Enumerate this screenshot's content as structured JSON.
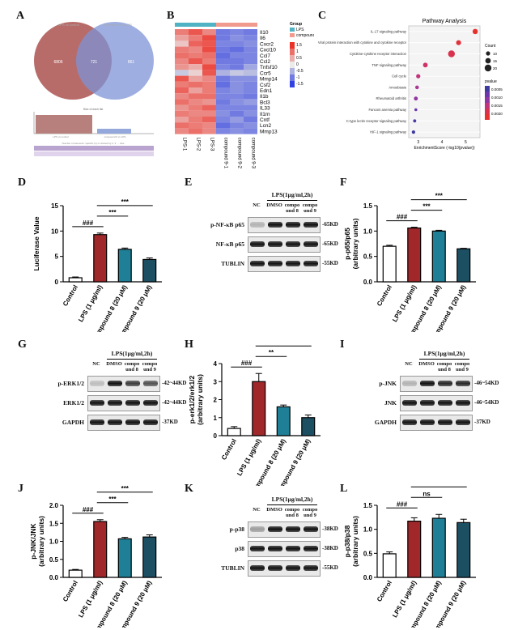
{
  "panels": {
    "A": "A",
    "B": "B",
    "C": "C",
    "D": "D",
    "E": "E",
    "F": "F",
    "G": "G",
    "H": "H",
    "I": "I",
    "J": "J",
    "K": "K",
    "L": "L"
  },
  "venn": {
    "left_title": "LPS vs control",
    "right_title": "compound 9 vs LPS",
    "left_only": "6806",
    "overlap": "721",
    "right_only": "861",
    "bar_title": "Size of each list",
    "bar_left": "LPS vs control",
    "bar_right": "compound 9 vs LPS",
    "bottom_note": "Number of elements: specific (1) or shared by 2, 3, ... lists"
  },
  "heatmap": {
    "genes": [
      "Il10",
      "Il6",
      "Cxcr2",
      "Cxcl10",
      "Ccl7",
      "Ccl2",
      "Tnfsf10",
      "Ccr5",
      "Mmp14",
      "Csf2",
      "Edn1",
      "Il1b",
      "Bcl3",
      "IL33",
      "Il1rn",
      "Cntf",
      "Lcn2",
      "Mmp13"
    ],
    "samples": [
      "LPS-1",
      "LPS-2",
      "LPS-3",
      "compound 9-1",
      "compound 9-2",
      "compound 9-3"
    ],
    "legend_title": "Group",
    "groups": [
      {
        "name": "LPS",
        "color": "#4fb3c4"
      },
      {
        "name": "compound 9",
        "color": "#f19a8e"
      }
    ],
    "scale_ticks": [
      "1.5",
      "1",
      "0.5",
      "0",
      "-0.5",
      "-1",
      "-1.5"
    ]
  },
  "pathway": {
    "title": "Pathway Analysis",
    "xlabel": "EnrichmentScore (-log10(pvalue))",
    "xticks": [
      "3",
      "4",
      "5"
    ],
    "terms": [
      "IL-17 signaling pathway",
      "Viral protein interaction with cytokine and cytokine receptor",
      "Cytokine-cytokine receptor interaction",
      "TNF signaling pathway",
      "Cell cycle",
      "Amoebiasis",
      "Rheumatoid arthritis",
      "Fanconi anemia pathway",
      "C-type lectin receptor signaling pathway",
      "HIF-1 signaling pathway"
    ],
    "count_title": "Count",
    "count_ticks": [
      "10",
      "15",
      "20"
    ],
    "pvalue_title": "pvalue",
    "pvalue_ticks": [
      "0.0005",
      "0.0010",
      "0.0015",
      "0.0020"
    ]
  },
  "xcats": [
    "Control",
    "LPS (1 μg/ml)",
    "compound 8 (20 μM)",
    "compound 9 (20 μM)"
  ],
  "bar_colors": [
    "#ffffff",
    "#a0282b",
    "#1f7f97",
    "#1d4f63"
  ],
  "chart_data": [
    {
      "id": "D",
      "type": "bar",
      "ylabel": "Luciferase Value",
      "ylim": [
        0,
        15
      ],
      "yticks": [
        "0",
        "5",
        "10",
        "15"
      ],
      "values": [
        0.8,
        9.3,
        6.4,
        4.4
      ],
      "errors": [
        0.15,
        0.3,
        0.25,
        0.3
      ],
      "sig": [
        {
          "from": 0,
          "to": 1,
          "label": "###"
        },
        {
          "from": 1,
          "to": 2,
          "label": "***"
        },
        {
          "from": 1,
          "to": 3,
          "label": "***"
        }
      ]
    },
    {
      "id": "F",
      "type": "bar",
      "ylabel": "p-p65/p65\n(arbitrary units)",
      "ylim": [
        0,
        1.5
      ],
      "yticks": [
        "0.0",
        "0.5",
        "1.0",
        "1.5"
      ],
      "values": [
        0.7,
        1.06,
        1.0,
        0.65
      ],
      "errors": [
        0.02,
        0.015,
        0.015,
        0.01
      ],
      "sig": [
        {
          "from": 0,
          "to": 1,
          "label": "###"
        },
        {
          "from": 1,
          "to": 2,
          "label": "***"
        },
        {
          "from": 1,
          "to": 3,
          "label": "***"
        }
      ]
    },
    {
      "id": "H",
      "type": "bar",
      "ylabel": "p-erk1/2/erk1/2\n(arbitrary units)",
      "ylim": [
        0,
        4
      ],
      "yticks": [
        "0",
        "1",
        "2",
        "3",
        "4"
      ],
      "values": [
        0.4,
        3.0,
        1.6,
        1.0
      ],
      "errors": [
        0.1,
        0.45,
        0.1,
        0.15
      ],
      "sig": [
        {
          "from": 0,
          "to": 1,
          "label": "###"
        },
        {
          "from": 1,
          "to": 2,
          "label": "**"
        },
        {
          "from": 1,
          "to": 3,
          "label": "**"
        }
      ]
    },
    {
      "id": "J",
      "type": "bar",
      "ylabel": "p-JNK/JNK\n(arbitrary units)",
      "ylim": [
        0,
        2.0
      ],
      "yticks": [
        "0.0",
        "0.5",
        "1.0",
        "1.5",
        "2.0"
      ],
      "values": [
        0.2,
        1.55,
        1.07,
        1.12
      ],
      "errors": [
        0.02,
        0.05,
        0.04,
        0.06
      ],
      "sig": [
        {
          "from": 0,
          "to": 1,
          "label": "###"
        },
        {
          "from": 1,
          "to": 2,
          "label": "***"
        },
        {
          "from": 1,
          "to": 3,
          "label": "***"
        }
      ]
    },
    {
      "id": "L",
      "type": "bar",
      "ylabel": "p-p38/p38\n(arbitrary units)",
      "ylim": [
        0,
        1.5
      ],
      "yticks": [
        "0.0",
        "0.5",
        "1.0",
        "1.5"
      ],
      "values": [
        0.49,
        1.17,
        1.23,
        1.14
      ],
      "errors": [
        0.04,
        0.07,
        0.08,
        0.07
      ],
      "sig": [
        {
          "from": 0,
          "to": 1,
          "label": "###"
        },
        {
          "from": 1,
          "to": 2,
          "label": "ns"
        },
        {
          "from": 1,
          "to": 3,
          "label": "ns"
        }
      ]
    }
  ],
  "blots": {
    "lps_header": "LPS(1μg/ml,2h)",
    "nc": "NC",
    "dmso": "DMSO",
    "c8": "compo\nund 8",
    "c9": "compo\nund 9",
    "E": {
      "rows": [
        {
          "name": "p-NF-κB p65",
          "kd": "-65KD"
        },
        {
          "name": "NF-κB p65",
          "kd": "-65KD"
        },
        {
          "name": "TUBLIN",
          "kd": "-55KD"
        }
      ]
    },
    "G": {
      "rows": [
        {
          "name": "p-ERK1/2",
          "kd": "-42~44KD"
        },
        {
          "name": "ERK1/2",
          "kd": "-42~44KD"
        },
        {
          "name": "GAPDH",
          "kd": "-37KD"
        }
      ]
    },
    "I": {
      "rows": [
        {
          "name": "p-JNK",
          "kd": "-46~54KD"
        },
        {
          "name": "JNK",
          "kd": "-46~54KD"
        },
        {
          "name": "GAPDH",
          "kd": "-37KD"
        }
      ]
    },
    "K": {
      "rows": [
        {
          "name": "p-p38",
          "kd": "-38KD"
        },
        {
          "name": "p38",
          "kd": "-38KD"
        },
        {
          "name": "TUBLIN",
          "kd": "-55KD"
        }
      ]
    }
  }
}
